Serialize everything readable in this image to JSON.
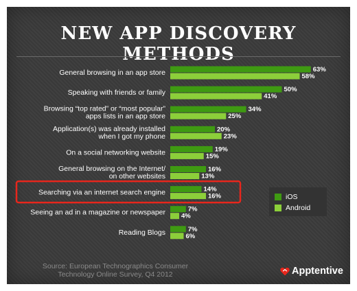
{
  "chart_data": {
    "type": "bar",
    "title": "NEW APP DISCOVERY METHODS",
    "categories": [
      [
        "General browsing in an app store"
      ],
      [
        "Speaking with friends or family"
      ],
      [
        "Browsing “top rated” or “most popular”",
        "apps lists in an app store"
      ],
      [
        "Application(s) was already installed",
        "when I got my phone"
      ],
      [
        "On a social networking website"
      ],
      [
        "General browsing on the Internet/",
        "on other websites"
      ],
      [
        "Searching via an internet search engine"
      ],
      [
        "Seeing an ad in a magazine or newspaper"
      ],
      [
        "Reading Blogs"
      ]
    ],
    "series": [
      {
        "name": "iOS",
        "color": "#3f9a12",
        "values": [
          63,
          50,
          34,
          20,
          19,
          16,
          14,
          7,
          7
        ]
      },
      {
        "name": "Android",
        "color": "#8ccf3a",
        "values": [
          58,
          41,
          25,
          23,
          15,
          13,
          16,
          4,
          6
        ]
      }
    ],
    "value_suffix": "%",
    "highlighted_category": "Searching via an internet search engine",
    "highlight_color": "#e8261c",
    "orientation": "horizontal",
    "xlim": [
      0,
      70
    ],
    "grid": false,
    "legend_position": "right"
  },
  "legend": {
    "ios": "iOS",
    "android": "Android"
  },
  "source": {
    "line1": "Source: European Technographics Consumer",
    "line2": "Technology Online Survey, Q4 2012"
  },
  "logo": {
    "text": "Apptentive",
    "color": "#e8261c"
  }
}
